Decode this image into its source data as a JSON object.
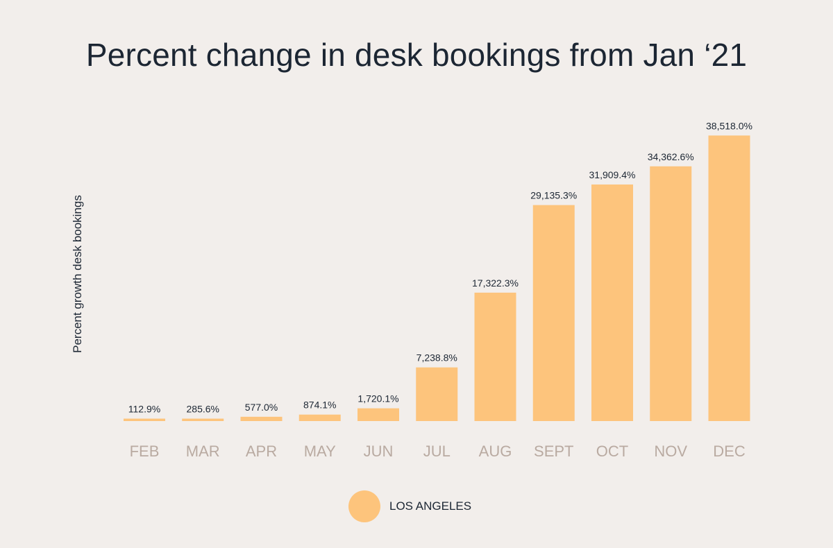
{
  "chart_data": {
    "type": "bar",
    "title": "Percent change in desk bookings from Jan ‘21",
    "xlabel": "",
    "ylabel": "Percent growth desk bookings",
    "categories": [
      "FEB",
      "MAR",
      "APR",
      "MAY",
      "JUN",
      "JUL",
      "AUG",
      "SEPT",
      "OCT",
      "NOV",
      "DEC"
    ],
    "series": [
      {
        "name": "LOS ANGELES",
        "values": [
          112.9,
          285.6,
          577.0,
          874.1,
          1720.1,
          7238.8,
          17322.3,
          29135.3,
          31909.4,
          34362.6,
          38518.0
        ],
        "labels": [
          "112.9%",
          "285.6%",
          "577.0%",
          "874.1%",
          "1,720.1%",
          "7,238.8%",
          "17,322.3%",
          "29,135.3%",
          "31,909.4%",
          "34,362.6%",
          "38,518.0%"
        ]
      }
    ],
    "ylim": [
      0,
      40000
    ],
    "grid": false,
    "legend_position": "bottom-center",
    "colors": {
      "bar": "#fdc47c",
      "tick_label": "#b9aaa1",
      "text": "#1c2633",
      "background": "#f2eeeb"
    }
  }
}
